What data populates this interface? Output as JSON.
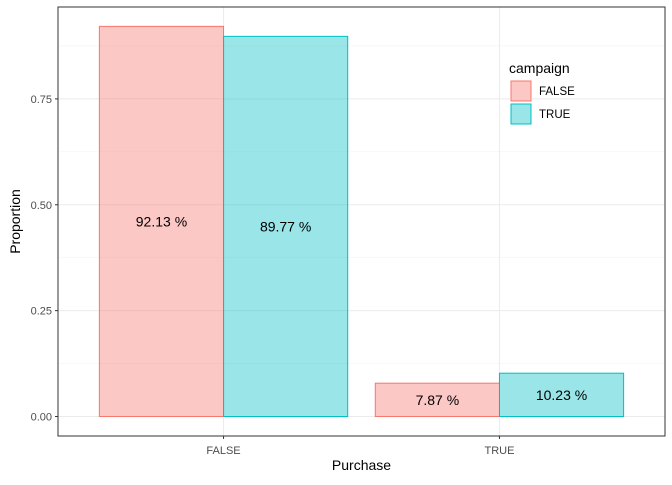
{
  "chart_data": {
    "type": "bar",
    "categories": [
      "FALSE",
      "TRUE"
    ],
    "series": [
      {
        "name": "FALSE",
        "values": [
          0.9213,
          0.0787
        ],
        "labels": [
          "92.13 %",
          "7.87 %"
        ],
        "fill": "#F8766D",
        "stroke": "#F8766D"
      },
      {
        "name": "TRUE",
        "values": [
          0.8977,
          0.1023
        ],
        "labels": [
          "89.77 %",
          "10.23 %"
        ],
        "fill": "#00BFC4",
        "stroke": "#00BFC4"
      }
    ],
    "xlabel": "Purchase",
    "ylabel": "Proportion",
    "ylim": [
      -0.046,
      0.967
    ],
    "yticks": [
      0.0,
      0.25,
      0.5,
      0.75
    ],
    "ytick_labels": [
      "0.00",
      "0.25",
      "0.50",
      "0.75"
    ],
    "legend": {
      "title": "campaign",
      "position": "top-right",
      "entries": [
        "FALSE",
        "TRUE"
      ]
    },
    "grid": true,
    "bar_opacity": 0.4
  }
}
